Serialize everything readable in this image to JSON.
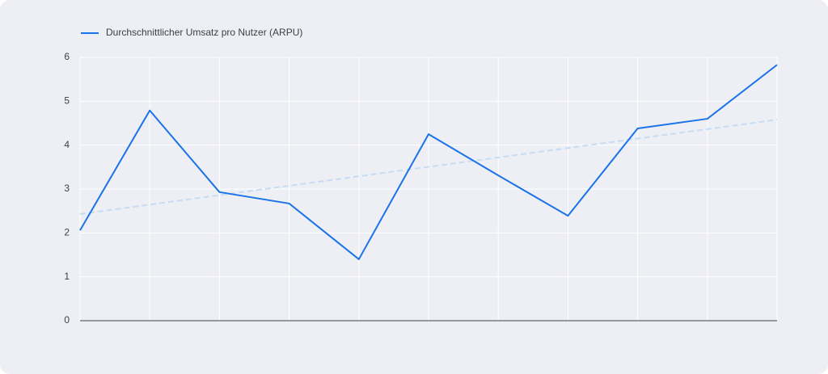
{
  "chart_data": {
    "type": "line",
    "categories": [
      null,
      null,
      null,
      null,
      null,
      null,
      null,
      null,
      null,
      null,
      null
    ],
    "series": [
      {
        "name": "Durchschnittlicher Umsatz pro Nutzer (ARPU)",
        "color": "#1a73e8",
        "values": [
          2.06,
          4.79,
          2.93,
          2.67,
          1.4,
          4.25,
          3.31,
          2.39,
          4.38,
          4.6,
          5.83
        ]
      }
    ],
    "trendline": {
      "color": "#c6dcf5",
      "values": [
        2.43,
        4.58
      ]
    },
    "ylim": [
      0,
      6
    ],
    "yticks": [
      0,
      1,
      2,
      3,
      4,
      5,
      6
    ],
    "grid": true,
    "legend": "top-left"
  }
}
